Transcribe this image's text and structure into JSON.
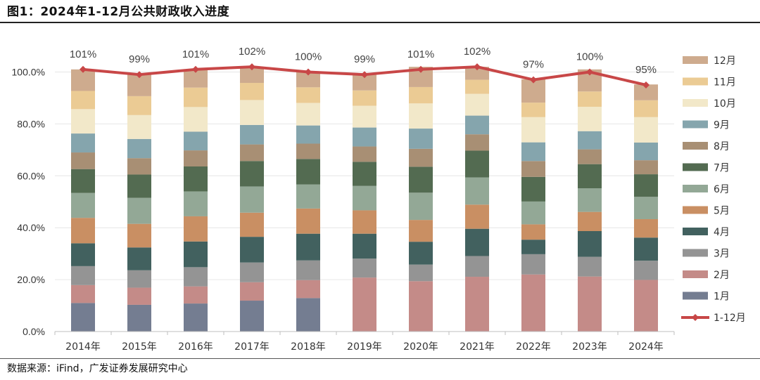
{
  "header": {
    "title": "图1：2024年1-12月公共财政收入进度"
  },
  "footer": {
    "source": "数据来源：iFind，广发证券发展研究中心"
  },
  "chart_data": {
    "type": "stacked-bar-with-line",
    "title": "图1：2024年1-12月公共财政收入进度",
    "categories": [
      "2014年",
      "2015年",
      "2016年",
      "2017年",
      "2018年",
      "2019年",
      "2020年",
      "2021年",
      "2022年",
      "2023年",
      "2024年"
    ],
    "ylim": [
      0,
      110
    ],
    "yticks": [
      "0.0%",
      "20.0%",
      "40.0%",
      "60.0%",
      "80.0%",
      "100.0%"
    ],
    "ytick_values": [
      0,
      20,
      40,
      60,
      80,
      100
    ],
    "legend_position": "right",
    "stacked_series": [
      {
        "name": "1月",
        "color": "#747d91",
        "values": [
          11,
          10.3,
          10.8,
          11.9,
          12.9,
          0,
          0,
          0,
          0,
          0,
          0
        ]
      },
      {
        "name": "2月",
        "color": "#c48b88",
        "values": [
          6.9,
          6.6,
          6.6,
          7.1,
          6.9,
          20.8,
          19.4,
          21.1,
          22.0,
          21.2,
          19.9
        ]
      },
      {
        "name": "3月",
        "color": "#949494",
        "values": [
          7.3,
          6.7,
          7.4,
          7.6,
          7.6,
          7.3,
          6.4,
          8.0,
          7.8,
          7.6,
          7.4
        ]
      },
      {
        "name": "4月",
        "color": "#42615f",
        "values": [
          8.8,
          8.8,
          9.9,
          9.9,
          10.3,
          9.6,
          8.8,
          10.5,
          5.6,
          9.9,
          8.9
        ]
      },
      {
        "name": "5月",
        "color": "#c98f63",
        "values": [
          9.8,
          9.1,
          9.7,
          9.3,
          9.7,
          9.0,
          8.4,
          9.3,
          5.9,
          7.4,
          7.1
        ]
      },
      {
        "name": "6月",
        "color": "#93a896",
        "values": [
          9.6,
          10.0,
          9.6,
          10.1,
          9.3,
          9.4,
          10.5,
          10.5,
          8.8,
          9.1,
          8.6
        ]
      },
      {
        "name": "7月",
        "color": "#536b51",
        "values": [
          9.2,
          9.0,
          9.6,
          9.8,
          9.8,
          9.3,
          10.0,
          10.3,
          9.5,
          9.3,
          8.7
        ]
      },
      {
        "name": "8月",
        "color": "#a88f74",
        "values": [
          6.4,
          6.3,
          6.2,
          6.4,
          5.9,
          5.9,
          6.9,
          6.3,
          6.1,
          5.7,
          5.4
        ]
      },
      {
        "name": "9月",
        "color": "#85a5ad",
        "values": [
          7.3,
          7.4,
          7.2,
          7.5,
          7.0,
          7.3,
          7.8,
          7.2,
          7.2,
          7.0,
          6.8
        ]
      },
      {
        "name": "10月",
        "color": "#f2e8c9",
        "values": [
          9.4,
          9.2,
          9.5,
          9.6,
          8.7,
          8.4,
          9.7,
          8.4,
          9.7,
          9.4,
          9.8
        ]
      },
      {
        "name": "11月",
        "color": "#ebcb94",
        "values": [
          7.0,
          7.3,
          7.5,
          6.6,
          6.0,
          5.9,
          6.3,
          5.4,
          5.6,
          5.9,
          6.5
        ]
      },
      {
        "name": "12月",
        "color": "#ceab8e",
        "values": [
          8.3,
          8.3,
          7.0,
          6.2,
          5.9,
          6.0,
          7.8,
          5.0,
          9.0,
          8.5,
          6.1
        ]
      }
    ],
    "line_series": {
      "name": "1-12月",
      "color": "#c84747",
      "values": [
        101,
        99,
        101,
        102,
        100,
        99,
        101,
        102,
        97,
        100,
        95
      ],
      "labels": [
        "101%",
        "99%",
        "101%",
        "102%",
        "100%",
        "99%",
        "101%",
        "102%",
        "97%",
        "100%",
        "95%"
      ]
    }
  }
}
